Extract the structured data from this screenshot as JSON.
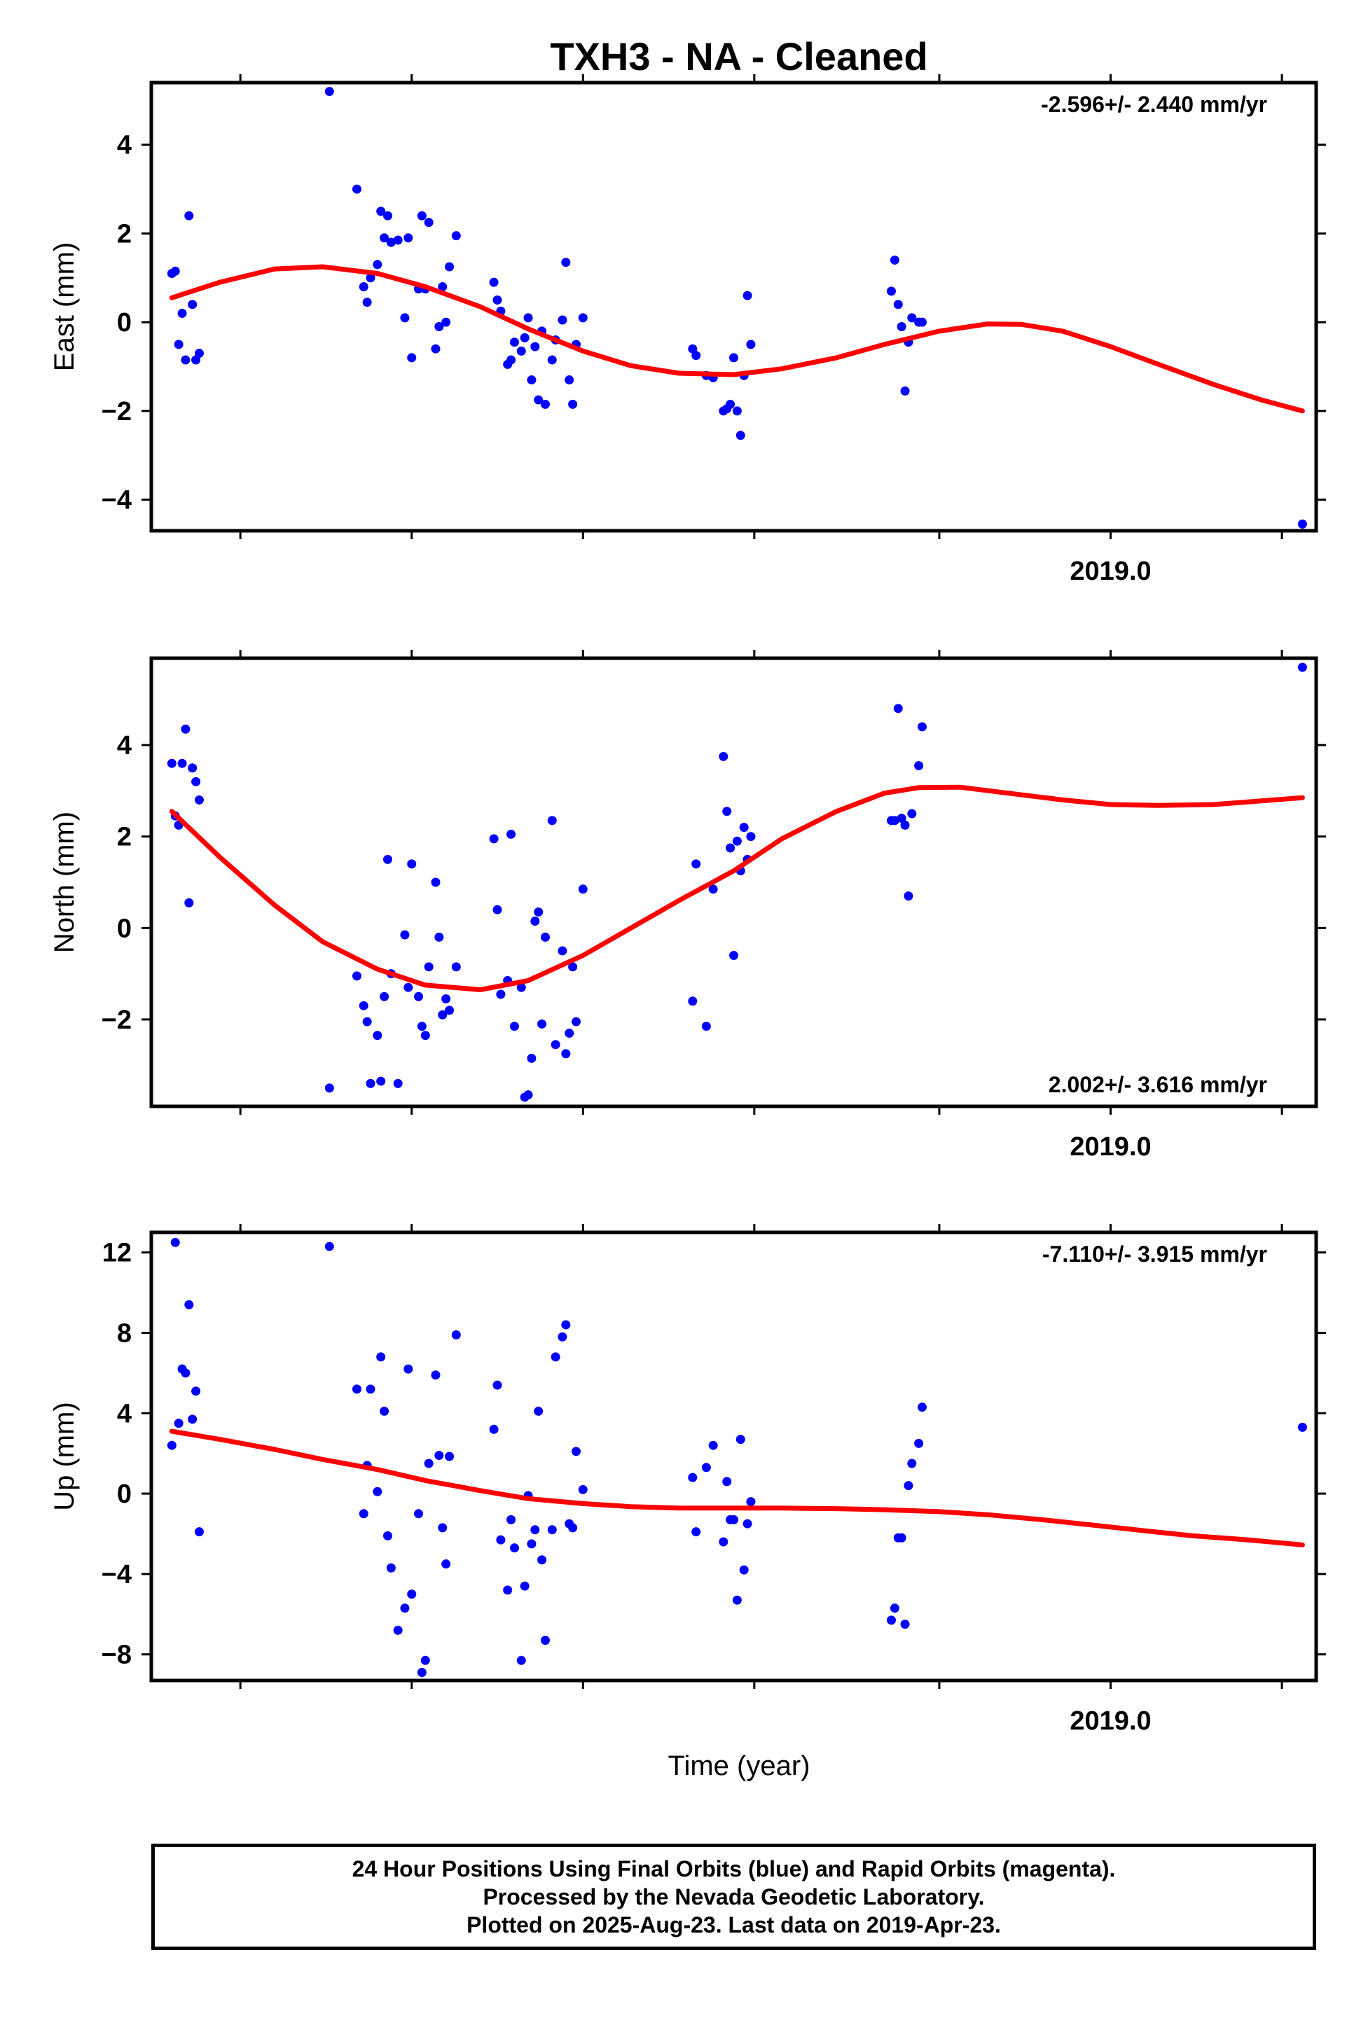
{
  "title": "TXH3  - NA - Cleaned",
  "xlabel": "Time (year)",
  "x_tick_label": "2019.0",
  "footer": {
    "line1": "24 Hour Positions Using Final Orbits (blue) and Rapid Orbits (magenta).",
    "line2": "Processed by the Nevada Geodetic Laboratory.",
    "line3": "Plotted on 2025-Aug-23. Last data on 2019-Apr-23."
  },
  "colors": {
    "points": "#0000ff",
    "fit": "#ff0000",
    "axes": "#000000"
  },
  "chart_data": [
    {
      "type": "scatter",
      "ylabel": "East (mm)",
      "rate": "-2.596+/- 2.440 mm/yr",
      "rate_position": "top-right",
      "ylim": [
        -4.7,
        5.4
      ],
      "yticks": [
        -4,
        -2,
        0,
        2,
        4
      ],
      "xlim": [
        2017.6,
        2019.3
      ],
      "xticks": [
        2018.75,
        2019.0
      ],
      "x_minor_ticks": [
        2017.73,
        2017.98,
        2018.23,
        2018.48,
        2018.75,
        2019.0,
        2019.25,
        2019.5,
        2019.75
      ],
      "x_labeled_ticks": [
        {
          "x": 2019.0,
          "label": "2019.0"
        }
      ],
      "grid": false,
      "points": [
        [
          2017.63,
          1.1
        ],
        [
          2017.635,
          1.15
        ],
        [
          2017.64,
          -0.5
        ],
        [
          2017.645,
          0.2
        ],
        [
          2017.65,
          -0.85
        ],
        [
          2017.655,
          2.4
        ],
        [
          2017.66,
          0.4
        ],
        [
          2017.665,
          -0.85
        ],
        [
          2017.67,
          -0.7
        ],
        [
          2017.86,
          5.2
        ],
        [
          2017.9,
          3.0
        ],
        [
          2017.91,
          0.8
        ],
        [
          2017.915,
          0.45
        ],
        [
          2017.92,
          1.0
        ],
        [
          2017.93,
          1.3
        ],
        [
          2017.935,
          2.5
        ],
        [
          2017.94,
          1.9
        ],
        [
          2017.945,
          2.4
        ],
        [
          2017.95,
          1.8
        ],
        [
          2017.96,
          1.85
        ],
        [
          2017.97,
          0.1
        ],
        [
          2017.975,
          1.9
        ],
        [
          2017.98,
          -0.8
        ],
        [
          2017.99,
          0.75
        ],
        [
          2017.995,
          2.4
        ],
        [
          2018.0,
          0.75
        ],
        [
          2018.005,
          2.25
        ],
        [
          2018.015,
          -0.6
        ],
        [
          2018.02,
          -0.1
        ],
        [
          2018.025,
          0.8
        ],
        [
          2018.03,
          0.0
        ],
        [
          2018.035,
          1.25
        ],
        [
          2018.045,
          1.95
        ],
        [
          2018.1,
          0.9
        ],
        [
          2018.105,
          0.5
        ],
        [
          2018.11,
          0.25
        ],
        [
          2018.12,
          -0.95
        ],
        [
          2018.125,
          -0.85
        ],
        [
          2018.13,
          -0.45
        ],
        [
          2018.14,
          -0.65
        ],
        [
          2018.145,
          -0.35
        ],
        [
          2018.15,
          0.1
        ],
        [
          2018.155,
          -1.3
        ],
        [
          2018.16,
          -0.55
        ],
        [
          2018.165,
          -1.75
        ],
        [
          2018.17,
          -0.2
        ],
        [
          2018.175,
          -1.85
        ],
        [
          2018.185,
          -0.85
        ],
        [
          2018.19,
          -0.4
        ],
        [
          2018.2,
          0.05
        ],
        [
          2018.205,
          1.35
        ],
        [
          2018.21,
          -1.3
        ],
        [
          2018.215,
          -1.85
        ],
        [
          2018.22,
          -0.5
        ],
        [
          2018.23,
          0.1
        ],
        [
          2018.39,
          -0.6
        ],
        [
          2018.395,
          -0.75
        ],
        [
          2018.41,
          -1.2
        ],
        [
          2018.42,
          -1.25
        ],
        [
          2018.435,
          -2.0
        ],
        [
          2018.44,
          -1.95
        ],
        [
          2018.445,
          -1.85
        ],
        [
          2018.45,
          -0.8
        ],
        [
          2018.455,
          -2.0
        ],
        [
          2018.46,
          -2.55
        ],
        [
          2018.465,
          -1.2
        ],
        [
          2018.47,
          0.6
        ],
        [
          2018.475,
          -0.5
        ],
        [
          2018.68,
          0.7
        ],
        [
          2018.685,
          1.4
        ],
        [
          2018.69,
          0.4
        ],
        [
          2018.695,
          -0.1
        ],
        [
          2018.7,
          -1.55
        ],
        [
          2018.705,
          -0.45
        ],
        [
          2018.71,
          0.1
        ],
        [
          2018.72,
          0.0
        ],
        [
          2018.725,
          0.0
        ],
        [
          2019.28,
          -4.55
        ]
      ],
      "fit": [
        [
          2017.63,
          0.55
        ],
        [
          2017.7,
          0.9
        ],
        [
          2017.78,
          1.2
        ],
        [
          2017.85,
          1.25
        ],
        [
          2017.93,
          1.1
        ],
        [
          2018.0,
          0.8
        ],
        [
          2018.08,
          0.35
        ],
        [
          2018.15,
          -0.15
        ],
        [
          2018.23,
          -0.65
        ],
        [
          2018.3,
          -0.98
        ],
        [
          2018.37,
          -1.15
        ],
        [
          2018.45,
          -1.18
        ],
        [
          2018.52,
          -1.05
        ],
        [
          2018.6,
          -0.8
        ],
        [
          2018.67,
          -0.5
        ],
        [
          2018.75,
          -0.2
        ],
        [
          2018.82,
          -0.04
        ],
        [
          2018.87,
          -0.05
        ],
        [
          2018.93,
          -0.2
        ],
        [
          2019.0,
          -0.55
        ],
        [
          2019.07,
          -0.95
        ],
        [
          2019.15,
          -1.4
        ],
        [
          2019.22,
          -1.75
        ],
        [
          2019.28,
          -2.0
        ]
      ]
    },
    {
      "type": "scatter",
      "ylabel": "North (mm)",
      "rate": "2.002+/- 3.616 mm/yr",
      "rate_position": "bottom-right",
      "ylim": [
        -3.9,
        5.9
      ],
      "yticks": [
        -2,
        0,
        2,
        4
      ],
      "xlim": [
        2017.6,
        2019.3
      ],
      "xticks": [
        2018.75,
        2019.0
      ],
      "x_minor_ticks": [
        2017.73,
        2017.98,
        2018.23,
        2018.48,
        2018.75,
        2019.0,
        2019.25,
        2019.5,
        2019.75
      ],
      "x_labeled_ticks": [
        {
          "x": 2019.0,
          "label": "2019.0"
        }
      ],
      "grid": false,
      "points": [
        [
          2017.63,
          3.6
        ],
        [
          2017.635,
          2.45
        ],
        [
          2017.64,
          2.25
        ],
        [
          2017.645,
          3.6
        ],
        [
          2017.65,
          4.35
        ],
        [
          2017.655,
          0.55
        ],
        [
          2017.66,
          3.5
        ],
        [
          2017.665,
          3.2
        ],
        [
          2017.67,
          2.8
        ],
        [
          2017.86,
          -3.5
        ],
        [
          2017.9,
          -1.05
        ],
        [
          2017.91,
          -1.7
        ],
        [
          2017.915,
          -2.05
        ],
        [
          2017.92,
          -3.4
        ],
        [
          2017.93,
          -2.35
        ],
        [
          2017.935,
          -3.35
        ],
        [
          2017.94,
          -1.5
        ],
        [
          2017.945,
          1.5
        ],
        [
          2017.95,
          -1.0
        ],
        [
          2017.96,
          -3.4
        ],
        [
          2017.97,
          -0.15
        ],
        [
          2017.975,
          -1.3
        ],
        [
          2017.98,
          1.4
        ],
        [
          2017.99,
          -1.5
        ],
        [
          2017.995,
          -2.15
        ],
        [
          2018.0,
          -2.35
        ],
        [
          2018.005,
          -0.85
        ],
        [
          2018.015,
          1.0
        ],
        [
          2018.02,
          -0.2
        ],
        [
          2018.025,
          -1.9
        ],
        [
          2018.03,
          -1.55
        ],
        [
          2018.035,
          -1.8
        ],
        [
          2018.045,
          -0.85
        ],
        [
          2018.1,
          1.95
        ],
        [
          2018.105,
          0.4
        ],
        [
          2018.11,
          -1.45
        ],
        [
          2018.12,
          -1.15
        ],
        [
          2018.125,
          2.05
        ],
        [
          2018.13,
          -2.15
        ],
        [
          2018.14,
          -1.3
        ],
        [
          2018.145,
          -3.7
        ],
        [
          2018.15,
          -3.65
        ],
        [
          2018.155,
          -2.85
        ],
        [
          2018.16,
          0.15
        ],
        [
          2018.165,
          0.35
        ],
        [
          2018.17,
          -2.1
        ],
        [
          2018.175,
          -0.2
        ],
        [
          2018.185,
          2.35
        ],
        [
          2018.19,
          -2.55
        ],
        [
          2018.2,
          -0.5
        ],
        [
          2018.205,
          -2.75
        ],
        [
          2018.21,
          -2.3
        ],
        [
          2018.215,
          -0.85
        ],
        [
          2018.22,
          -2.05
        ],
        [
          2018.23,
          0.85
        ],
        [
          2018.39,
          -1.6
        ],
        [
          2018.395,
          1.4
        ],
        [
          2018.41,
          -2.15
        ],
        [
          2018.42,
          0.85
        ],
        [
          2018.435,
          3.75
        ],
        [
          2018.44,
          2.55
        ],
        [
          2018.445,
          1.75
        ],
        [
          2018.45,
          -0.6
        ],
        [
          2018.455,
          1.9
        ],
        [
          2018.46,
          1.25
        ],
        [
          2018.465,
          2.2
        ],
        [
          2018.47,
          1.5
        ],
        [
          2018.475,
          2.0
        ],
        [
          2018.68,
          2.35
        ],
        [
          2018.685,
          2.35
        ],
        [
          2018.69,
          4.8
        ],
        [
          2018.695,
          2.4
        ],
        [
          2018.7,
          2.25
        ],
        [
          2018.705,
          0.7
        ],
        [
          2018.71,
          2.5
        ],
        [
          2018.72,
          3.55
        ],
        [
          2018.725,
          4.4
        ],
        [
          2019.28,
          5.7
        ]
      ],
      "fit": [
        [
          2017.63,
          2.55
        ],
        [
          2017.7,
          1.55
        ],
        [
          2017.78,
          0.5
        ],
        [
          2017.85,
          -0.3
        ],
        [
          2017.93,
          -0.9
        ],
        [
          2018.0,
          -1.25
        ],
        [
          2018.08,
          -1.35
        ],
        [
          2018.15,
          -1.15
        ],
        [
          2018.23,
          -0.6
        ],
        [
          2018.3,
          0.0
        ],
        [
          2018.37,
          0.6
        ],
        [
          2018.45,
          1.25
        ],
        [
          2018.52,
          1.95
        ],
        [
          2018.6,
          2.55
        ],
        [
          2018.67,
          2.95
        ],
        [
          2018.72,
          3.07
        ],
        [
          2018.78,
          3.08
        ],
        [
          2018.85,
          2.95
        ],
        [
          2018.93,
          2.8
        ],
        [
          2019.0,
          2.7
        ],
        [
          2019.07,
          2.68
        ],
        [
          2019.15,
          2.7
        ],
        [
          2019.22,
          2.78
        ],
        [
          2019.28,
          2.85
        ]
      ]
    },
    {
      "type": "scatter",
      "ylabel": "Up (mm)",
      "rate": "-7.110+/- 3.915 mm/yr",
      "rate_position": "top-right",
      "ylim": [
        -9.3,
        13.0
      ],
      "yticks": [
        -8,
        -4,
        0,
        4,
        8,
        12
      ],
      "xlim": [
        2017.6,
        2019.3
      ],
      "xticks": [
        2018.75,
        2019.0
      ],
      "x_minor_ticks": [
        2017.73,
        2017.98,
        2018.23,
        2018.48,
        2018.75,
        2019.0,
        2019.25,
        2019.5,
        2019.75
      ],
      "x_labeled_ticks": [
        {
          "x": 2019.0,
          "label": "2019.0"
        }
      ],
      "grid": false,
      "points": [
        [
          2017.63,
          2.4
        ],
        [
          2017.635,
          12.5
        ],
        [
          2017.64,
          3.5
        ],
        [
          2017.645,
          6.2
        ],
        [
          2017.65,
          6.0
        ],
        [
          2017.655,
          9.4
        ],
        [
          2017.66,
          3.7
        ],
        [
          2017.665,
          5.1
        ],
        [
          2017.67,
          -1.9
        ],
        [
          2017.86,
          12.3
        ],
        [
          2017.9,
          5.2
        ],
        [
          2017.91,
          -1.0
        ],
        [
          2017.915,
          1.4
        ],
        [
          2017.92,
          5.2
        ],
        [
          2017.93,
          0.1
        ],
        [
          2017.935,
          6.8
        ],
        [
          2017.94,
          4.1
        ],
        [
          2017.945,
          -2.1
        ],
        [
          2017.95,
          -3.7
        ],
        [
          2017.96,
          -6.8
        ],
        [
          2017.97,
          -5.7
        ],
        [
          2017.975,
          6.2
        ],
        [
          2017.98,
          -5.0
        ],
        [
          2017.99,
          -1.0
        ],
        [
          2017.995,
          -8.9
        ],
        [
          2018.0,
          -8.3
        ],
        [
          2018.005,
          1.5
        ],
        [
          2018.015,
          5.9
        ],
        [
          2018.02,
          1.9
        ],
        [
          2018.025,
          -1.7
        ],
        [
          2018.03,
          -3.5
        ],
        [
          2018.035,
          1.85
        ],
        [
          2018.045,
          7.9
        ],
        [
          2018.1,
          3.2
        ],
        [
          2018.105,
          5.4
        ],
        [
          2018.11,
          -2.3
        ],
        [
          2018.12,
          -4.8
        ],
        [
          2018.125,
          -1.3
        ],
        [
          2018.13,
          -2.7
        ],
        [
          2018.14,
          -8.3
        ],
        [
          2018.145,
          -4.6
        ],
        [
          2018.15,
          -0.1
        ],
        [
          2018.155,
          -2.5
        ],
        [
          2018.16,
          -1.8
        ],
        [
          2018.165,
          4.1
        ],
        [
          2018.17,
          -3.3
        ],
        [
          2018.175,
          -7.3
        ],
        [
          2018.185,
          -1.8
        ],
        [
          2018.19,
          6.8
        ],
        [
          2018.2,
          7.8
        ],
        [
          2018.205,
          8.4
        ],
        [
          2018.21,
          -1.5
        ],
        [
          2018.215,
          -1.7
        ],
        [
          2018.22,
          2.1
        ],
        [
          2018.23,
          0.2
        ],
        [
          2018.39,
          0.8
        ],
        [
          2018.395,
          -1.9
        ],
        [
          2018.41,
          1.3
        ],
        [
          2018.42,
          2.4
        ],
        [
          2018.435,
          -2.4
        ],
        [
          2018.44,
          0.6
        ],
        [
          2018.445,
          -1.3
        ],
        [
          2018.45,
          -1.3
        ],
        [
          2018.455,
          -5.3
        ],
        [
          2018.46,
          2.7
        ],
        [
          2018.465,
          -3.8
        ],
        [
          2018.47,
          -1.5
        ],
        [
          2018.475,
          -0.4
        ],
        [
          2018.68,
          -6.3
        ],
        [
          2018.685,
          -5.7
        ],
        [
          2018.69,
          -2.2
        ],
        [
          2018.695,
          -2.2
        ],
        [
          2018.7,
          -6.5
        ],
        [
          2018.705,
          0.4
        ],
        [
          2018.71,
          1.5
        ],
        [
          2018.72,
          2.5
        ],
        [
          2018.725,
          4.3
        ],
        [
          2019.28,
          3.3
        ]
      ],
      "fit": [
        [
          2017.63,
          3.1
        ],
        [
          2017.7,
          2.7
        ],
        [
          2017.78,
          2.2
        ],
        [
          2017.85,
          1.7
        ],
        [
          2017.93,
          1.2
        ],
        [
          2018.0,
          0.65
        ],
        [
          2018.08,
          0.15
        ],
        [
          2018.15,
          -0.25
        ],
        [
          2018.23,
          -0.5
        ],
        [
          2018.3,
          -0.65
        ],
        [
          2018.37,
          -0.72
        ],
        [
          2018.45,
          -0.72
        ],
        [
          2018.52,
          -0.72
        ],
        [
          2018.6,
          -0.75
        ],
        [
          2018.67,
          -0.8
        ],
        [
          2018.75,
          -0.9
        ],
        [
          2018.82,
          -1.05
        ],
        [
          2018.9,
          -1.3
        ],
        [
          2018.97,
          -1.55
        ],
        [
          2019.05,
          -1.85
        ],
        [
          2019.12,
          -2.1
        ],
        [
          2019.2,
          -2.3
        ],
        [
          2019.28,
          -2.55
        ]
      ]
    }
  ]
}
